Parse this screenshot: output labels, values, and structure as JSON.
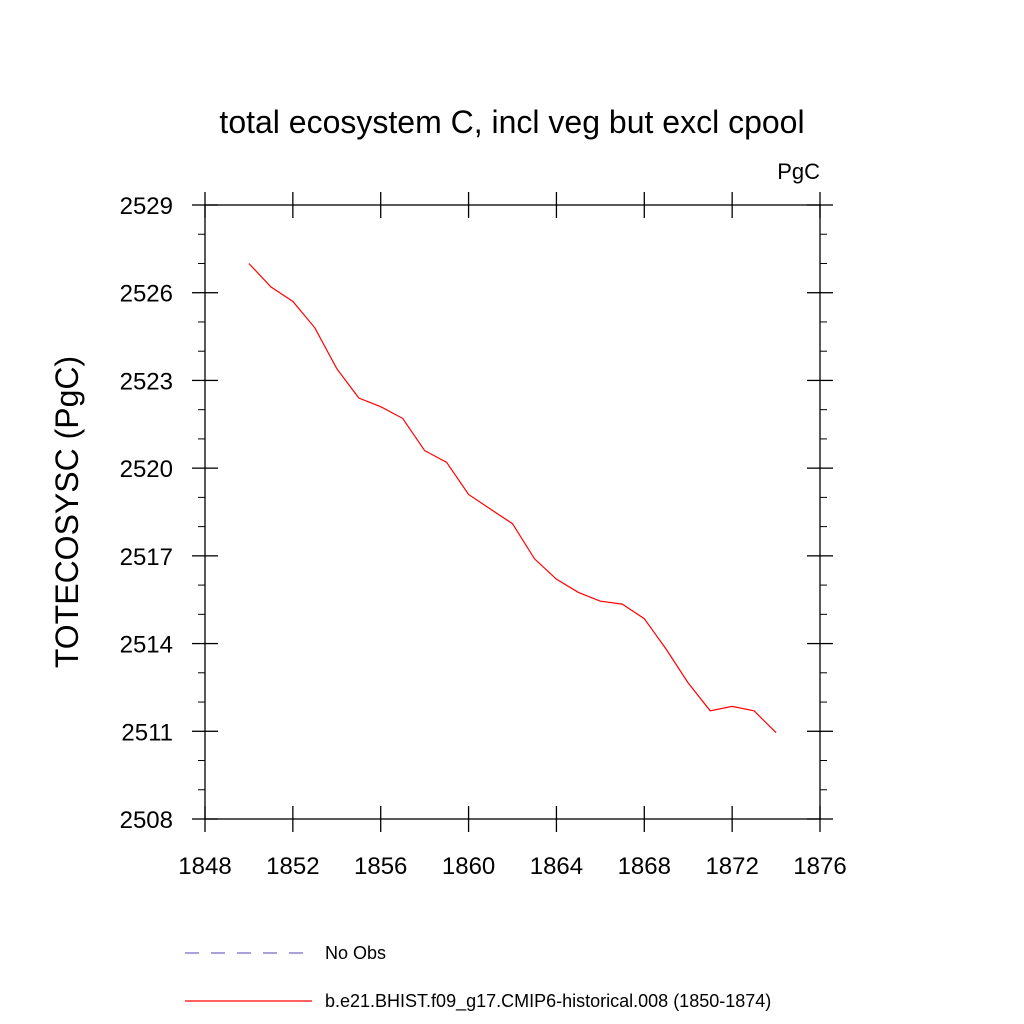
{
  "chart_data": {
    "type": "line",
    "title": "total ecosystem C, incl veg but excl cpool",
    "units_label": "PgC",
    "xlabel": "",
    "ylabel": "TOTECOSYSC  (PgC)",
    "xlim": [
      1848,
      1876
    ],
    "ylim": [
      2508,
      2529
    ],
    "x_ticks": [
      1848,
      1852,
      1856,
      1860,
      1864,
      1868,
      1872,
      1876
    ],
    "y_ticks": [
      2508,
      2511,
      2514,
      2517,
      2520,
      2523,
      2526,
      2529
    ],
    "grid": false,
    "legend_position": "bottom",
    "series": [
      {
        "name": "b.e21.BHIST.f09_g17.CMIP6-historical.008 (1850-1874)",
        "color": "#ff0000",
        "style": "solid",
        "x": [
          1850,
          1851,
          1852,
          1853,
          1854,
          1855,
          1856,
          1857,
          1858,
          1859,
          1860,
          1861,
          1862,
          1863,
          1864,
          1865,
          1866,
          1867,
          1868,
          1869,
          1870,
          1871,
          1872,
          1873,
          1874
        ],
        "y": [
          2527.0,
          2526.2,
          2525.7,
          2524.8,
          2523.4,
          2522.4,
          2522.1,
          2521.7,
          2520.6,
          2520.2,
          2519.1,
          2518.6,
          2518.1,
          2516.9,
          2516.2,
          2515.75,
          2515.45,
          2515.35,
          2514.85,
          2513.8,
          2512.65,
          2511.7,
          2511.85,
          2511.7,
          2510.95
        ]
      }
    ],
    "legend": [
      {
        "label": "No Obs",
        "color": "#7b68c8",
        "style": "dashed"
      },
      {
        "label": "b.e21.BHIST.f09_g17.CMIP6-historical.008 (1850-1874)",
        "color": "#ff0000",
        "style": "solid"
      }
    ]
  }
}
